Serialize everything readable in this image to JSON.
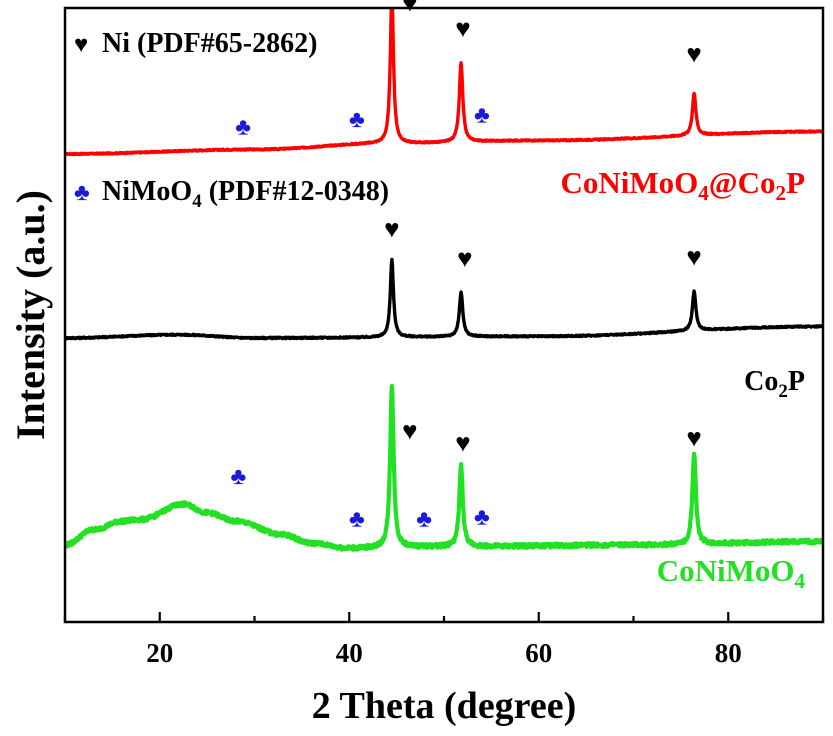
{
  "chart_data": {
    "type": "line",
    "title": "",
    "xlabel": "2 Theta (degree)",
    "ylabel": "Intensity (a.u.)",
    "xlim": [
      10,
      90
    ],
    "x_ticks": [
      20,
      40,
      60,
      80
    ],
    "y_ticks": "none",
    "grid": false,
    "legend": [
      {
        "symbol": "♥",
        "color": "#000000",
        "label": "Ni (PDF#65-2862)"
      },
      {
        "symbol": "♣",
        "color": "#1a1ad9",
        "label": "NiMoO",
        "sub": "4",
        "label_after": " (PDF#12-0348)"
      }
    ],
    "series": [
      {
        "name": "CoNiMoO4@Co2P",
        "color": "#ff0000",
        "display_label": [
          "CoNiMoO",
          "4",
          "@Co",
          "2",
          "P"
        ],
        "baseline": [
          [
            10,
            0.0
          ],
          [
            30,
            0.03
          ],
          [
            44,
            0.07
          ],
          [
            60,
            0.09
          ],
          [
            90,
            0.15
          ]
        ],
        "peaks": [
          {
            "x": 44.5,
            "h": 1.0,
            "w": 0.2
          },
          {
            "x": 51.8,
            "h": 0.53,
            "w": 0.22
          },
          {
            "x": 76.4,
            "h": 0.28,
            "w": 0.22
          }
        ],
        "noise": 0.004,
        "markers": [
          {
            "symbol": "♣",
            "x": 28.8,
            "y": 0.13
          },
          {
            "symbol": "♣",
            "x": 40.8,
            "y": 0.18
          },
          {
            "symbol": "♥",
            "x": 46.4,
            "y": 0.95
          },
          {
            "symbol": "♥",
            "x": 52.0,
            "y": 0.78
          },
          {
            "symbol": "♣",
            "x": 54.0,
            "y": 0.21
          },
          {
            "symbol": "♥",
            "x": 76.4,
            "y": 0.61
          }
        ]
      },
      {
        "name": "Co2P",
        "color": "#000000",
        "display_label": [
          "Co",
          "2",
          "P"
        ],
        "baseline": [
          [
            10,
            0.0
          ],
          [
            22,
            0.02
          ],
          [
            30,
            0.0
          ],
          [
            60,
            0.01
          ],
          [
            90,
            0.07
          ]
        ],
        "peaks": [
          {
            "x": 44.5,
            "h": 0.47,
            "w": 0.2
          },
          {
            "x": 51.8,
            "h": 0.27,
            "w": 0.22
          },
          {
            "x": 76.4,
            "h": 0.24,
            "w": 0.22
          }
        ],
        "noise": 0.004,
        "markers": [
          {
            "symbol": "♥",
            "x": 44.5,
            "y": 0.61
          },
          {
            "symbol": "♥",
            "x": 52.2,
            "y": 0.43
          },
          {
            "symbol": "♥",
            "x": 76.4,
            "y": 0.44
          }
        ]
      },
      {
        "name": "CoNiMoO4",
        "color": "#22e022",
        "display_label": [
          "CoNiMoO",
          "4"
        ],
        "baseline": [
          [
            10,
            0.0
          ],
          [
            13,
            0.09
          ],
          [
            16,
            0.14
          ],
          [
            18,
            0.15
          ],
          [
            22.5,
            0.24
          ],
          [
            25,
            0.19
          ],
          [
            28,
            0.14
          ],
          [
            33,
            0.06
          ],
          [
            36,
            0.01
          ],
          [
            40,
            -0.02
          ],
          [
            50,
            -0.01
          ],
          [
            70,
            0.0
          ],
          [
            90,
            0.02
          ]
        ],
        "peaks": [
          {
            "x": 44.5,
            "h": 0.95,
            "w": 0.22
          },
          {
            "x": 51.8,
            "h": 0.48,
            "w": 0.22
          },
          {
            "x": 76.4,
            "h": 0.53,
            "w": 0.22
          }
        ],
        "noise": 0.012,
        "markers": [
          {
            "symbol": "♣",
            "x": 28.3,
            "y": 0.36
          },
          {
            "symbol": "♣",
            "x": 40.8,
            "y": 0.11
          },
          {
            "symbol": "♥",
            "x": 46.4,
            "y": 0.62
          },
          {
            "symbol": "♣",
            "x": 47.9,
            "y": 0.11
          },
          {
            "symbol": "♥",
            "x": 52.0,
            "y": 0.55
          },
          {
            "symbol": "♣",
            "x": 54.0,
            "y": 0.12
          },
          {
            "symbol": "♥",
            "x": 76.4,
            "y": 0.58
          }
        ]
      }
    ]
  }
}
